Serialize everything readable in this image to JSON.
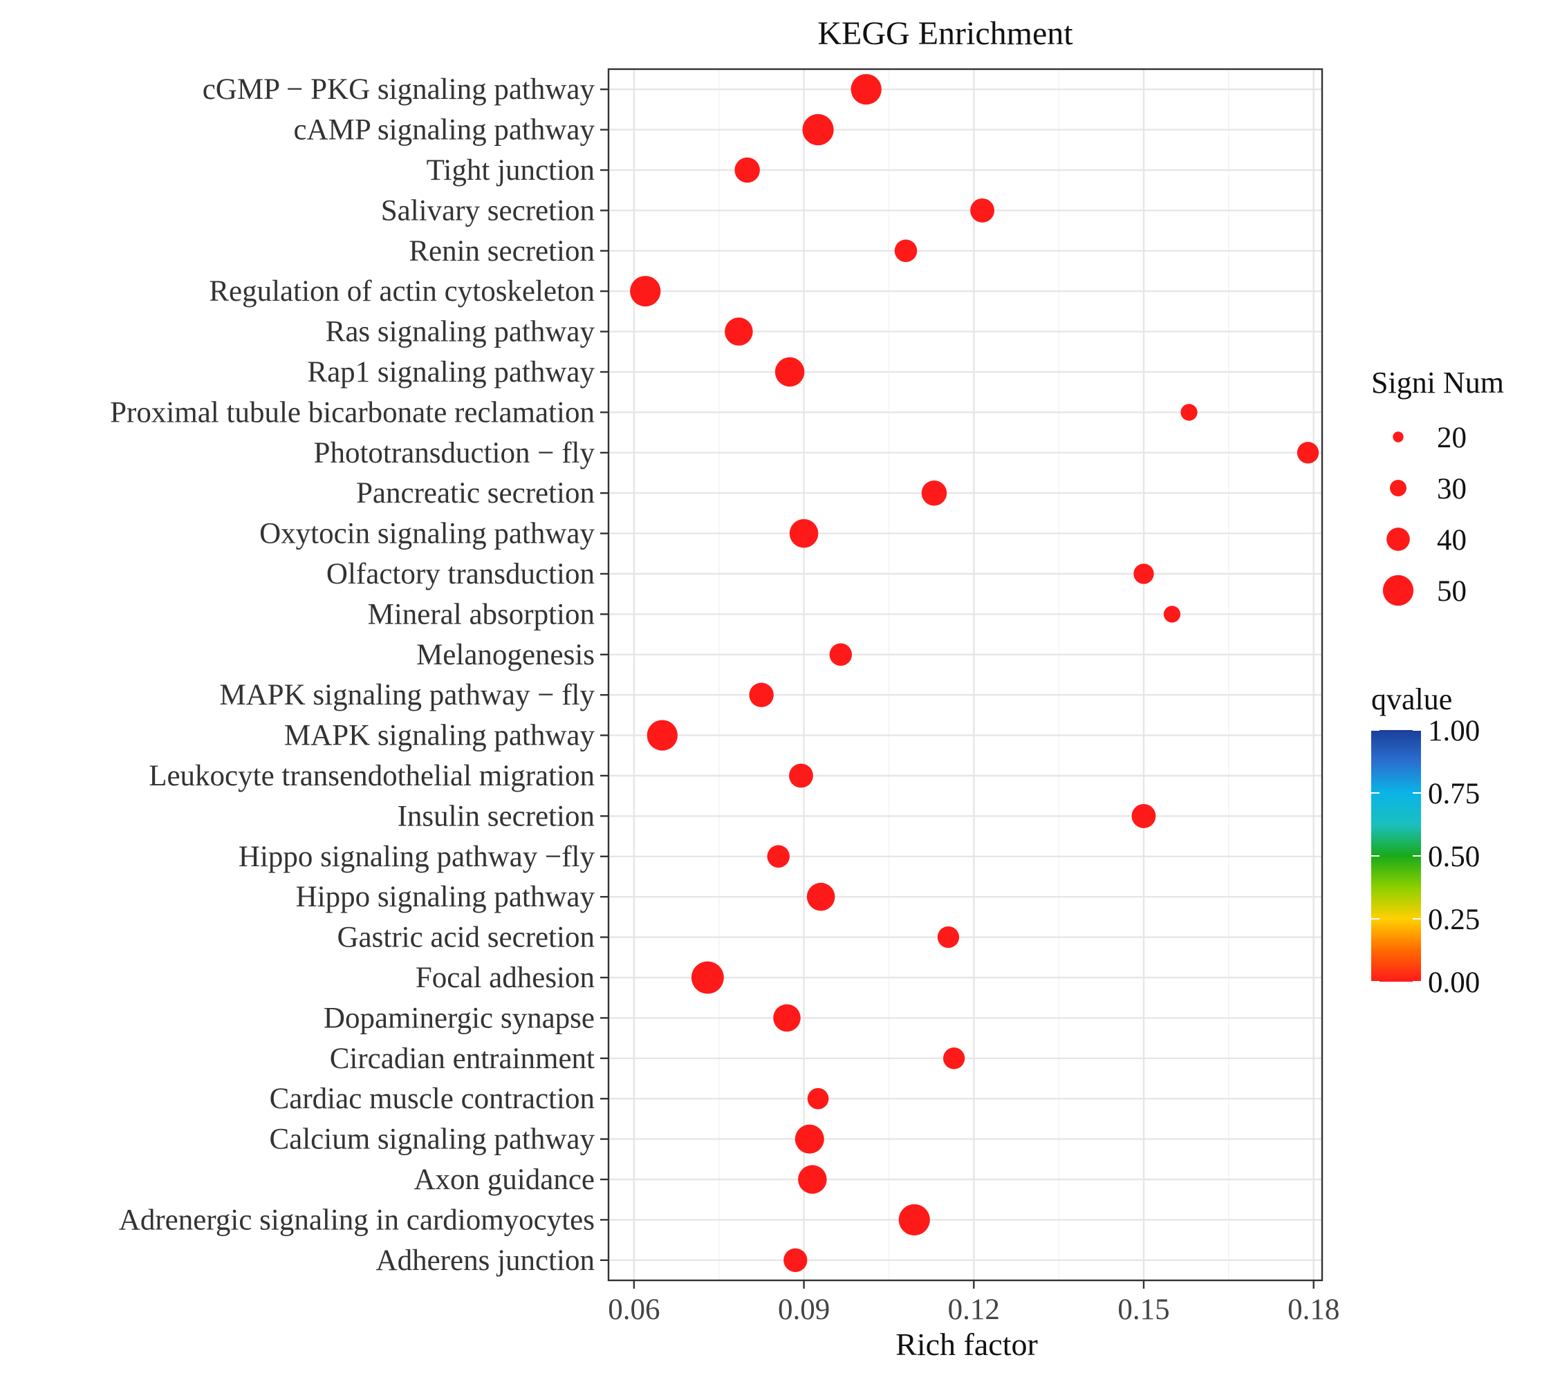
{
  "chart_data": {
    "type": "scatter",
    "title": "KEGG Enrichment",
    "xlabel": "Rich factor",
    "ylabel": "",
    "xlim": [
      0.0555,
      0.1815
    ],
    "xticks": [
      0.06,
      0.09,
      0.12,
      0.15,
      0.18
    ],
    "xtick_labels": [
      "0.06",
      "0.09",
      "0.12",
      "0.15",
      "0.18"
    ],
    "grid": true,
    "points": [
      {
        "pathway": "cGMP − PKG signaling pathway",
        "rich_factor": 0.101,
        "signi_num": 50,
        "qvalue": 0.0
      },
      {
        "pathway": "cAMP signaling pathway",
        "rich_factor": 0.0925,
        "signi_num": 52,
        "qvalue": 0.0
      },
      {
        "pathway": "Tight junction",
        "rich_factor": 0.08,
        "signi_num": 34,
        "qvalue": 0.0
      },
      {
        "pathway": "Salivary secretion",
        "rich_factor": 0.1215,
        "signi_num": 31,
        "qvalue": 0.0
      },
      {
        "pathway": "Renin secretion",
        "rich_factor": 0.108,
        "signi_num": 27,
        "qvalue": 0.0
      },
      {
        "pathway": "Regulation of actin cytoskeleton",
        "rich_factor": 0.062,
        "signi_num": 50,
        "qvalue": 0.0
      },
      {
        "pathway": "Ras signaling pathway",
        "rich_factor": 0.0785,
        "signi_num": 42,
        "qvalue": 0.0
      },
      {
        "pathway": "Rap1 signaling pathway",
        "rich_factor": 0.0875,
        "signi_num": 46,
        "qvalue": 0.0
      },
      {
        "pathway": "Proximal tubule bicarbonate reclamation",
        "rich_factor": 0.158,
        "signi_num": 15,
        "qvalue": 0.0
      },
      {
        "pathway": "Phototransduction − fly",
        "rich_factor": 0.179,
        "signi_num": 25,
        "qvalue": 0.0
      },
      {
        "pathway": "Pancreatic secretion",
        "rich_factor": 0.113,
        "signi_num": 34,
        "qvalue": 0.0
      },
      {
        "pathway": "Oxytocin signaling pathway",
        "rich_factor": 0.09,
        "signi_num": 44,
        "qvalue": 0.0
      },
      {
        "pathway": "Olfactory transduction",
        "rich_factor": 0.15,
        "signi_num": 22,
        "qvalue": 0.0
      },
      {
        "pathway": "Mineral absorption",
        "rich_factor": 0.155,
        "signi_num": 15,
        "qvalue": 0.0
      },
      {
        "pathway": "Melanogenesis",
        "rich_factor": 0.0965,
        "signi_num": 27,
        "qvalue": 0.0
      },
      {
        "pathway": "MAPK signaling pathway − fly",
        "rich_factor": 0.0825,
        "signi_num": 32,
        "qvalue": 0.0
      },
      {
        "pathway": "MAPK signaling pathway",
        "rich_factor": 0.065,
        "signi_num": 50,
        "qvalue": 0.0
      },
      {
        "pathway": "Leukocyte transendothelial migration",
        "rich_factor": 0.0895,
        "signi_num": 31,
        "qvalue": 0.0
      },
      {
        "pathway": "Insulin secretion",
        "rich_factor": 0.15,
        "signi_num": 31,
        "qvalue": 0.0
      },
      {
        "pathway": "Hippo signaling pathway −fly",
        "rich_factor": 0.0855,
        "signi_num": 27,
        "qvalue": 0.0
      },
      {
        "pathway": "Hippo signaling pathway",
        "rich_factor": 0.093,
        "signi_num": 42,
        "qvalue": 0.0
      },
      {
        "pathway": "Gastric acid secretion",
        "rich_factor": 0.1155,
        "signi_num": 25,
        "qvalue": 0.0
      },
      {
        "pathway": "Focal adhesion",
        "rich_factor": 0.073,
        "signi_num": 56,
        "qvalue": 0.0
      },
      {
        "pathway": "Dopaminergic synapse",
        "rich_factor": 0.087,
        "signi_num": 40,
        "qvalue": 0.0
      },
      {
        "pathway": "Circadian entrainment",
        "rich_factor": 0.1165,
        "signi_num": 25,
        "qvalue": 0.0
      },
      {
        "pathway": "Cardiac muscle contraction",
        "rich_factor": 0.0925,
        "signi_num": 24,
        "qvalue": 0.0
      },
      {
        "pathway": "Calcium signaling pathway",
        "rich_factor": 0.091,
        "signi_num": 45,
        "qvalue": 0.0
      },
      {
        "pathway": "Axon guidance",
        "rich_factor": 0.0915,
        "signi_num": 44,
        "qvalue": 0.0
      },
      {
        "pathway": "Adrenergic signaling in cardiomyocytes",
        "rich_factor": 0.1095,
        "signi_num": 52,
        "qvalue": 0.0
      },
      {
        "pathway": "Adherens junction",
        "rich_factor": 0.0885,
        "signi_num": 30,
        "qvalue": 0.0
      }
    ],
    "size_legend": {
      "title": "Signi Num",
      "breaks": [
        20,
        30,
        40,
        50
      ],
      "labels": [
        "20",
        "30",
        "40",
        "50"
      ]
    },
    "color_legend": {
      "title": "qvalue",
      "range": [
        0.0,
        1.0
      ],
      "breaks": [
        1.0,
        0.75,
        0.5,
        0.25,
        0.0
      ],
      "labels": [
        "1.00",
        "0.75",
        "0.50",
        "0.25",
        "0.00"
      ],
      "gradient": [
        "#ff1a1a",
        "#ff6a00",
        "#ffd000",
        "#8cd000",
        "#1aaa1a",
        "#1abfbf",
        "#0ab4e6",
        "#2a6fd0",
        "#1a3f9a"
      ]
    },
    "point_color": "#ff1a1a"
  }
}
